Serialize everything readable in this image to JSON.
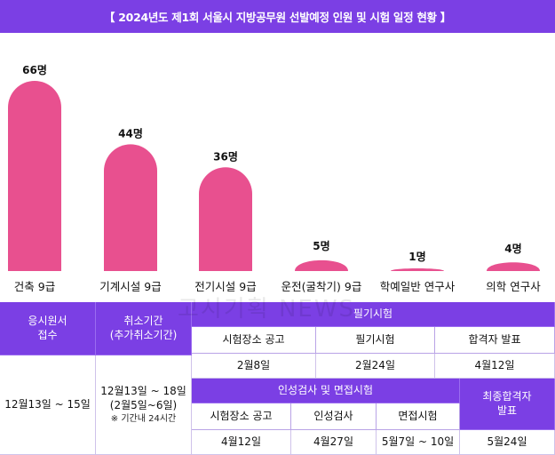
{
  "header": {
    "title": "【 2024년도 제1회 서울시 지방공무원 선발예정 인원 및 시험 일정 현황 】"
  },
  "watermark": "고시기획 NEWS",
  "colors": {
    "bar": "#e8508f",
    "purple": "#7b3fe4"
  },
  "chart_data": {
    "type": "bar",
    "title": "",
    "xlabel": "",
    "ylabel": "",
    "categories": [
      "건축 9급",
      "기계시설 9급",
      "전기시설 9급",
      "운전(굴착기) 9급",
      "학예일반 연구사",
      "의학 연구사"
    ],
    "values": [
      66,
      44,
      36,
      5,
      1,
      4
    ],
    "value_labels": [
      "66명",
      "44명",
      "36명",
      "5명",
      "1명",
      "4명"
    ],
    "ylim": [
      0,
      66
    ],
    "grid": false,
    "legend": "none"
  },
  "table": {
    "application": "응시원서\n접수",
    "application_date": "12월13일 ~ 15일",
    "cancel": "취소기간\n(추가취소기간)",
    "cancel_date": "12월13일 ~ 18일\n(2월5일~6일)",
    "cancel_note": "※ 기간내 24시간",
    "written": "필기시험",
    "written_venue": "시험장소 공고",
    "written_exam": "필기시험",
    "written_result": "합격자 발표",
    "written_venue_date": "2월8일",
    "written_exam_date": "2월24일",
    "written_result_date": "4월12일",
    "interview": "인성검사 및 면접시험",
    "interview_venue": "시험장소 공고",
    "interview_personality": "인성검사",
    "interview_exam": "면접시험",
    "final": "최종합격자\n발표",
    "interview_venue_date": "4월12일",
    "interview_personality_date": "4월27일",
    "interview_exam_date": "5월7일 ~ 10일",
    "final_date": "5월24일"
  }
}
